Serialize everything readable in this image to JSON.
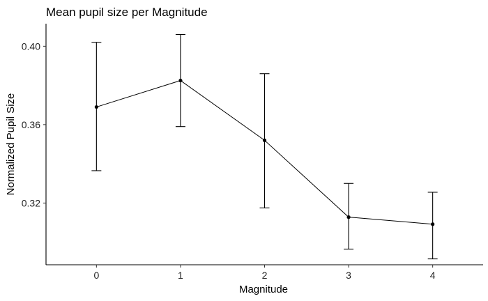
{
  "chart_data": {
    "type": "line",
    "title": "Mean pupil size per Magnitude",
    "xlabel": "Magnitude",
    "ylabel": "Normalized Pupil Size",
    "x": [
      0,
      1,
      2,
      3,
      4
    ],
    "x_tick_labels": [
      "0",
      "1",
      "2",
      "3",
      "4"
    ],
    "series": [
      {
        "values": [
          0.369,
          0.3825,
          0.352,
          0.3128,
          0.3092
        ],
        "error_low": [
          0.3365,
          0.359,
          0.3175,
          0.2965,
          0.2915
        ],
        "error_high": [
          0.402,
          0.406,
          0.386,
          0.33,
          0.3255
        ]
      }
    ],
    "y_ticks": [
      0.32,
      0.36,
      0.4
    ],
    "y_tick_labels": [
      "0.32",
      "0.36",
      "0.40"
    ],
    "xlim": [
      -0.6,
      4.6
    ],
    "ylim": [
      0.2885,
      0.4115
    ],
    "grid": false,
    "colors": {
      "line": "#000000",
      "point": "#000000",
      "error_bar": "#000000"
    }
  }
}
